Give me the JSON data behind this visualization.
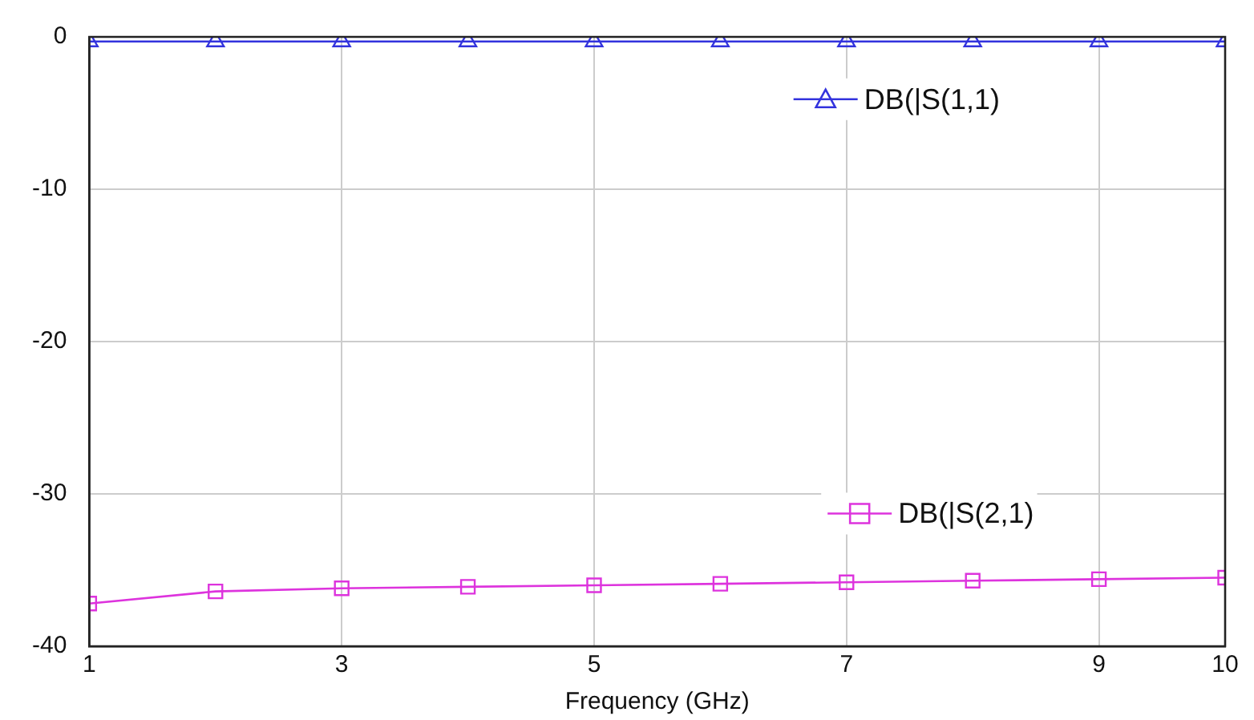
{
  "chart_data": {
    "type": "line",
    "xlabel": "Frequency (GHz)",
    "x": [
      1,
      2,
      3,
      4,
      5,
      6,
      7,
      8,
      9,
      10
    ],
    "series": [
      {
        "name": "DB(|S(1,1)",
        "color": "#3333dd",
        "marker": "triangle",
        "values": [
          -0.3,
          -0.3,
          -0.3,
          -0.3,
          -0.3,
          -0.3,
          -0.3,
          -0.3,
          -0.3,
          -0.3
        ]
      },
      {
        "name": "DB(|S(2,1)",
        "color": "#dd33dd",
        "marker": "square",
        "values": [
          -37.2,
          -36.4,
          -36.2,
          -36.1,
          -36.0,
          -35.9,
          -35.8,
          -35.7,
          -35.6,
          -35.5
        ]
      }
    ],
    "xlim": [
      1,
      10
    ],
    "xticks": [
      1,
      3,
      5,
      7,
      9,
      10
    ],
    "ylim": [
      -40,
      0
    ],
    "yticks": [
      0,
      -10,
      -20,
      -30,
      -40
    ],
    "grid": true,
    "legend": "right"
  }
}
